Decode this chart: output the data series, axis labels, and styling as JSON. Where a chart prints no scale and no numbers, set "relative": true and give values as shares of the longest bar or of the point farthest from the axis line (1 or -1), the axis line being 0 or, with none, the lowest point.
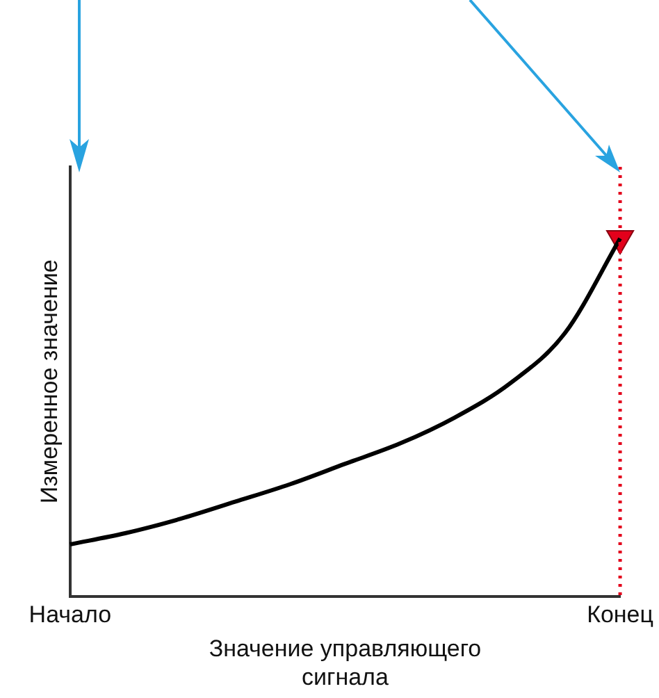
{
  "chart_data": {
    "type": "line",
    "relative": true,
    "xlabel": "Значение управляющего сигнала",
    "ylabel": "Измеренное значение",
    "categories": [
      "Начало",
      null,
      null,
      null,
      null,
      null,
      null,
      null,
      null,
      null,
      "Конец"
    ],
    "series": [
      {
        "color": "#000000",
        "values": [
          0.145,
          0.176,
          0.216,
          0.264,
          0.313,
          0.37,
          0.427,
          0.5,
          0.595,
          0.736,
          1
        ]
      },
      {
        "type": "scatter",
        "marker": "triangle",
        "color": "#e3001b",
        "values": [
          null,
          null,
          null,
          null,
          null,
          null,
          null,
          null,
          null,
          null,
          1
        ]
      }
    ],
    "ref_lines": [
      {
        "axis": "x",
        "value": "Конец",
        "color": "#e3001b",
        "line_style": "dotted"
      }
    ],
    "grid": false,
    "legend": false
  }
}
